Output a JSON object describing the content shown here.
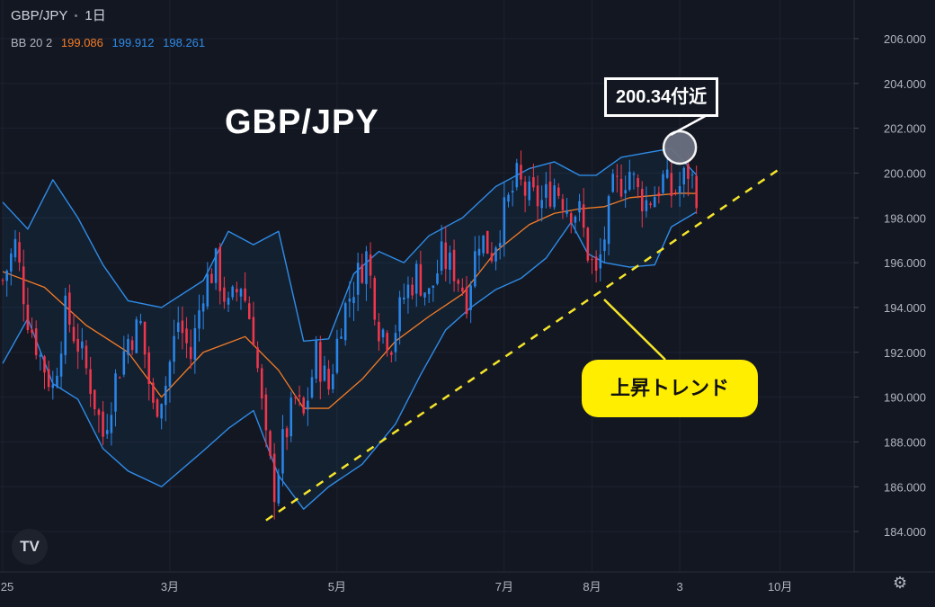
{
  "header": {
    "symbol": "GBP/JPY",
    "interval": "1日",
    "indicator": {
      "name": "BB 20 2",
      "basis": "199.086",
      "upper": "199.912",
      "lower": "198.261",
      "colors": {
        "basis": "#f57c26",
        "bands": "#2f8ce8"
      }
    }
  },
  "title_overlay": "GBP/JPY",
  "annotations": {
    "price_callout": "200.34付近",
    "trend_callout": "上昇トレンド"
  },
  "logo": "TV",
  "settings_icon": "gear-icon",
  "colors": {
    "background": "#131722",
    "up": "#2a85e8",
    "down": "#f0364c",
    "trendline": "#f5e52a",
    "grid": "#1e2230",
    "axis_text": "#b2b5be"
  },
  "chart_data": {
    "type": "candlestick",
    "title": "GBP/JPY",
    "ylim": [
      183.0,
      207.0
    ],
    "y_ticks": [
      "206.000",
      "204.000",
      "202.000",
      "200.000",
      "198.000",
      "196.000",
      "194.000",
      "192.000",
      "190.000",
      "188.000",
      "186.000",
      "184.000"
    ],
    "x_ticks": [
      {
        "label": "25",
        "t": 0
      },
      {
        "label": "3月",
        "t": 40
      },
      {
        "label": "5月",
        "t": 80
      },
      {
        "label": "7月",
        "t": 120
      },
      {
        "label": "8月",
        "t": 141
      },
      {
        "label": "3",
        "t": 162
      },
      {
        "label": "10月",
        "t": 186
      }
    ],
    "x_range": [
      0,
      205
    ],
    "price_points": [
      [
        0,
        195.2
      ],
      [
        3,
        196.8
      ],
      [
        6,
        193.6
      ],
      [
        9,
        191.8
      ],
      [
        12,
        190.4
      ],
      [
        15,
        193.8
      ],
      [
        18,
        192.4
      ],
      [
        21,
        190.6
      ],
      [
        24,
        188.3
      ],
      [
        27,
        190.8
      ],
      [
        30,
        192.6
      ],
      [
        33,
        193.2
      ],
      [
        36,
        189.4
      ],
      [
        39,
        190.6
      ],
      [
        42,
        193.4
      ],
      [
        45,
        191.8
      ],
      [
        48,
        194.9
      ],
      [
        51,
        195.9
      ],
      [
        54,
        193.9
      ],
      [
        57,
        195.1
      ],
      [
        60,
        192.9
      ],
      [
        63,
        187.9
      ],
      [
        65,
        185.9
      ],
      [
        67,
        187.9
      ],
      [
        70,
        189.9
      ],
      [
        72,
        189.1
      ],
      [
        75,
        191.9
      ],
      [
        78,
        190.4
      ],
      [
        81,
        193.5
      ],
      [
        84,
        195.0
      ],
      [
        87,
        196.3
      ],
      [
        90,
        193.2
      ],
      [
        93,
        192.5
      ],
      [
        96,
        194.5
      ],
      [
        99,
        195.5
      ],
      [
        102,
        194.5
      ],
      [
        105,
        196.2
      ],
      [
        108,
        195.7
      ],
      [
        111,
        194.5
      ],
      [
        114,
        197.2
      ],
      [
        117,
        196.5
      ],
      [
        120,
        198.2
      ],
      [
        123,
        199.7
      ],
      [
        126,
        198.9
      ],
      [
        129,
        198.7
      ],
      [
        132,
        199.5
      ],
      [
        135,
        198.6
      ],
      [
        138,
        198.2
      ],
      [
        140,
        196.5
      ],
      [
        142,
        195.3
      ],
      [
        144,
        197.2
      ],
      [
        146,
        199.2
      ],
      [
        148,
        199.6
      ],
      [
        150,
        200.1
      ],
      [
        152,
        199.1
      ],
      [
        154,
        198.7
      ],
      [
        156,
        199.1
      ],
      [
        158,
        199.7
      ],
      [
        160,
        199.1
      ],
      [
        162,
        199.4
      ],
      [
        164,
        200.1
      ],
      [
        166,
        199.2
      ]
    ],
    "bb_basis": [
      [
        0,
        195.6
      ],
      [
        10,
        194.9
      ],
      [
        20,
        193.2
      ],
      [
        30,
        192.0
      ],
      [
        38,
        190.0
      ],
      [
        48,
        192.0
      ],
      [
        58,
        192.7
      ],
      [
        66,
        191.2
      ],
      [
        72,
        189.5
      ],
      [
        78,
        189.5
      ],
      [
        86,
        190.8
      ],
      [
        94,
        192.5
      ],
      [
        102,
        193.6
      ],
      [
        110,
        194.6
      ],
      [
        118,
        196.5
      ],
      [
        126,
        197.7
      ],
      [
        132,
        198.2
      ],
      [
        138,
        198.4
      ],
      [
        144,
        198.5
      ],
      [
        150,
        198.9
      ],
      [
        156,
        199.0
      ],
      [
        162,
        199.1
      ],
      [
        166,
        199.09
      ]
    ],
    "bb_upper": [
      [
        0,
        198.7
      ],
      [
        6,
        197.5
      ],
      [
        12,
        199.7
      ],
      [
        18,
        198.0
      ],
      [
        24,
        195.9
      ],
      [
        30,
        194.3
      ],
      [
        38,
        194.0
      ],
      [
        48,
        195.2
      ],
      [
        54,
        197.4
      ],
      [
        60,
        196.8
      ],
      [
        66,
        197.4
      ],
      [
        72,
        192.5
      ],
      [
        78,
        192.6
      ],
      [
        84,
        195.5
      ],
      [
        90,
        196.5
      ],
      [
        96,
        196.0
      ],
      [
        102,
        197.2
      ],
      [
        110,
        198.0
      ],
      [
        118,
        199.4
      ],
      [
        126,
        200.2
      ],
      [
        132,
        200.5
      ],
      [
        138,
        199.9
      ],
      [
        142,
        199.9
      ],
      [
        148,
        200.7
      ],
      [
        154,
        200.9
      ],
      [
        160,
        201.1
      ],
      [
        166,
        199.91
      ]
    ],
    "bb_lower": [
      [
        0,
        191.5
      ],
      [
        6,
        193.5
      ],
      [
        12,
        190.6
      ],
      [
        18,
        189.9
      ],
      [
        24,
        187.7
      ],
      [
        30,
        186.7
      ],
      [
        38,
        186.0
      ],
      [
        48,
        187.6
      ],
      [
        54,
        188.6
      ],
      [
        60,
        189.4
      ],
      [
        66,
        186.5
      ],
      [
        72,
        185.0
      ],
      [
        78,
        186.0
      ],
      [
        86,
        187.0
      ],
      [
        94,
        188.8
      ],
      [
        100,
        191.0
      ],
      [
        106,
        193.0
      ],
      [
        112,
        194.0
      ],
      [
        118,
        194.8
      ],
      [
        124,
        195.3
      ],
      [
        130,
        196.2
      ],
      [
        136,
        197.8
      ],
      [
        140,
        196.4
      ],
      [
        144,
        196.0
      ],
      [
        150,
        195.8
      ],
      [
        156,
        195.9
      ],
      [
        160,
        197.6
      ],
      [
        166,
        198.26
      ]
    ],
    "trendline": [
      [
        63,
        184.5
      ],
      [
        186,
        200.2
      ]
    ],
    "highlight": {
      "t": 162,
      "price": 200.34
    }
  }
}
